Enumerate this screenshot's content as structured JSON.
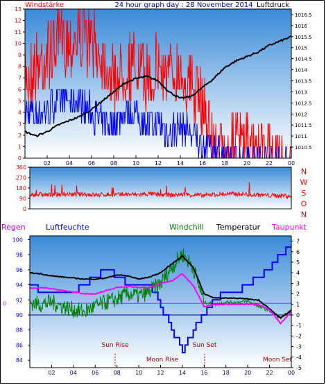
{
  "header": {
    "left_label": "Windstärke",
    "title": "24 hour graph day : 28 November 2014",
    "right_label": "Luftdruck"
  },
  "mid_labels": [
    "Regen",
    "Luftfeuchte",
    "Windchill",
    "Temperatur",
    "Taupunkt"
  ],
  "sun_moon": {
    "sun_rise": "Sun Rise",
    "sun_set": "Sun Set",
    "moon_rise": "Moon Rise",
    "moon_set": "Moon Set"
  },
  "colors": {
    "wind_speed": "#ff0000",
    "wind_avg": "#0000ff",
    "pressure": "#000000",
    "direction": "#ff0000",
    "humidity": "#0000ff",
    "windchill": "#008000",
    "temperature": "#000000",
    "dewpoint": "#ff00ff",
    "rain": "#000080",
    "grid": "#000000",
    "bg_top": "#3a8bd8",
    "bg_bottom": "#ffffff"
  },
  "chart_data": [
    {
      "type": "line",
      "title": "24 hour graph day : 28 November 2014",
      "x_ticks": [
        "02",
        "04",
        "06",
        "08",
        "10",
        "12",
        "14",
        "16",
        "18",
        "20",
        "22",
        "00"
      ],
      "left_axis": {
        "label": "Windstärke",
        "min": 0,
        "max": 13,
        "ticks": [
          0,
          1,
          2,
          3,
          4,
          5,
          6,
          7,
          8,
          9,
          10,
          11,
          12,
          13
        ]
      },
      "right_axis": {
        "label": "Luftdruck",
        "min": 1010.0,
        "max": 1016.75,
        "ticks": [
          "1010.5",
          "1011",
          "1011.5",
          "1012",
          "1012.5",
          "1013",
          "1013.5",
          "1014",
          "1014.5",
          "1015",
          "1015.5",
          "1016",
          "1016.5"
        ]
      },
      "series": [
        {
          "name": "Windstärke",
          "axis": "left",
          "x": [
            0,
            1,
            2,
            3,
            4,
            5,
            6,
            7,
            8,
            9,
            10,
            11,
            12,
            13,
            14,
            15,
            16,
            17,
            18,
            19,
            20,
            21,
            22,
            23,
            24
          ],
          "values": [
            9,
            10,
            11,
            12,
            12,
            13,
            12,
            11,
            9,
            10,
            10,
            9,
            10,
            9,
            10,
            8,
            7,
            3,
            2,
            3,
            3,
            2,
            2,
            1,
            1
          ]
        },
        {
          "name": "Windstärke (Mittel)",
          "axis": "left",
          "x": [
            0,
            1,
            2,
            3,
            4,
            5,
            6,
            7,
            8,
            9,
            10,
            11,
            12,
            13,
            14,
            15,
            16,
            17,
            18,
            19,
            20,
            21,
            22,
            23,
            24
          ],
          "values": [
            4,
            4,
            4,
            5,
            5,
            5,
            4,
            3,
            3,
            4,
            4,
            3,
            3,
            2,
            3,
            2,
            1,
            1,
            0,
            0,
            0,
            0,
            0,
            0,
            0
          ]
        },
        {
          "name": "Luftdruck",
          "axis": "right",
          "x": [
            0,
            1,
            2,
            3,
            4,
            5,
            6,
            7,
            8,
            9,
            10,
            11,
            12,
            13,
            14,
            15,
            16,
            17,
            18,
            19,
            20,
            21,
            22,
            23,
            24
          ],
          "values": [
            1011.2,
            1011.0,
            1011.2,
            1011.5,
            1011.7,
            1011.9,
            1012.2,
            1012.6,
            1013.0,
            1013.4,
            1013.6,
            1013.7,
            1013.5,
            1013.0,
            1012.7,
            1012.8,
            1013.2,
            1013.6,
            1014.1,
            1014.4,
            1014.6,
            1014.8,
            1015.1,
            1015.3,
            1015.5
          ]
        }
      ]
    },
    {
      "type": "line",
      "title": "",
      "x_ticks": [
        "02",
        "04",
        "06",
        "08",
        "10",
        "12",
        "14",
        "16",
        "18",
        "20",
        "22",
        "00"
      ],
      "left_axis": {
        "min": 0,
        "max": 360,
        "ticks": [
          0,
          90,
          180,
          270,
          360
        ]
      },
      "right_axis": {
        "ticks": [
          "N",
          "W",
          "S",
          "O",
          "N"
        ]
      },
      "series": [
        {
          "name": "Windrichtung",
          "x": [
            0,
            1,
            2,
            3,
            4,
            5,
            6,
            7,
            8,
            9,
            10,
            11,
            12,
            13,
            14,
            15,
            16,
            17,
            18,
            19,
            20,
            21,
            22,
            23,
            24
          ],
          "values": [
            120,
            125,
            118,
            130,
            122,
            128,
            118,
            124,
            120,
            126,
            122,
            130,
            120,
            118,
            124,
            120,
            115,
            125,
            125,
            130,
            125,
            120,
            115,
            115,
            110
          ]
        }
      ]
    },
    {
      "type": "line",
      "title": "",
      "x_ticks": [
        "02",
        "04",
        "06",
        "08",
        "10",
        "12",
        "14",
        "16",
        "18",
        "20",
        "22",
        "00"
      ],
      "left_axis": {
        "label": "Luftfeuchte",
        "min": 83,
        "max": 100.5,
        "ticks": [
          84,
          86,
          88,
          90,
          92,
          94,
          96,
          98,
          100
        ]
      },
      "right_axis": {
        "label": "Temperatur",
        "min": -5,
        "max": 7.5,
        "ticks": [
          -5,
          -4,
          -3,
          -2,
          -1,
          0,
          1,
          2,
          3,
          4,
          5,
          6,
          7
        ]
      },
      "rain_axis": {
        "label": "Regen",
        "ticks": [
          0
        ]
      },
      "series": [
        {
          "name": "Luftfeuchte",
          "axis": "left",
          "x": [
            0,
            1,
            2,
            3,
            4,
            5,
            6,
            7,
            8,
            9,
            10,
            11,
            12,
            13,
            14,
            15,
            16,
            17,
            18,
            19,
            20,
            21,
            22,
            23,
            24
          ],
          "values": [
            94,
            93,
            93,
            93,
            93,
            94,
            95,
            96,
            95,
            94,
            94,
            94,
            91,
            88,
            85,
            88,
            90,
            92,
            93,
            93,
            94,
            95,
            96,
            98,
            99
          ]
        },
        {
          "name": "Windchill",
          "axis": "right",
          "x": [
            0,
            1,
            2,
            3,
            4,
            5,
            6,
            7,
            8,
            9,
            10,
            11,
            12,
            13,
            14,
            15,
            16,
            17,
            18,
            19,
            20,
            21,
            22,
            23,
            24
          ],
          "values": [
            1.2,
            1.0,
            1.2,
            0.8,
            0.5,
            0.3,
            0.8,
            1.2,
            1.5,
            2.0,
            1.8,
            2.2,
            3.0,
            4.5,
            5.8,
            4.5,
            1.2,
            1.0,
            1.2,
            1.2,
            1.3,
            0.8,
            0.4,
            -0.3,
            0.4
          ]
        },
        {
          "name": "Temperatur",
          "axis": "right",
          "x": [
            0,
            1,
            2,
            3,
            4,
            5,
            6,
            7,
            8,
            9,
            10,
            11,
            12,
            13,
            14,
            15,
            16,
            17,
            18,
            19,
            20,
            21,
            22,
            23,
            24
          ],
          "values": [
            4.0,
            3.9,
            3.7,
            3.6,
            3.5,
            3.4,
            3.4,
            3.5,
            3.8,
            3.7,
            3.4,
            3.6,
            4.0,
            4.8,
            5.6,
            4.5,
            2.0,
            1.6,
            1.6,
            1.6,
            1.5,
            1.4,
            0.6,
            -0.3,
            0.4
          ]
        },
        {
          "name": "Taupunkt",
          "axis": "right",
          "x": [
            0,
            1,
            2,
            3,
            4,
            5,
            6,
            7,
            8,
            9,
            10,
            11,
            12,
            13,
            14,
            15,
            16,
            17,
            18,
            19,
            20,
            21,
            22,
            23,
            24
          ],
          "values": [
            2.5,
            2.6,
            2.5,
            2.3,
            2.2,
            2.0,
            2.0,
            2.3,
            2.6,
            2.7,
            2.6,
            2.6,
            3.0,
            3.2,
            3.9,
            2.8,
            0.8,
            1.0,
            1.0,
            1.0,
            1.0,
            1.0,
            0.5,
            -0.8,
            0.3
          ]
        }
      ]
    }
  ]
}
